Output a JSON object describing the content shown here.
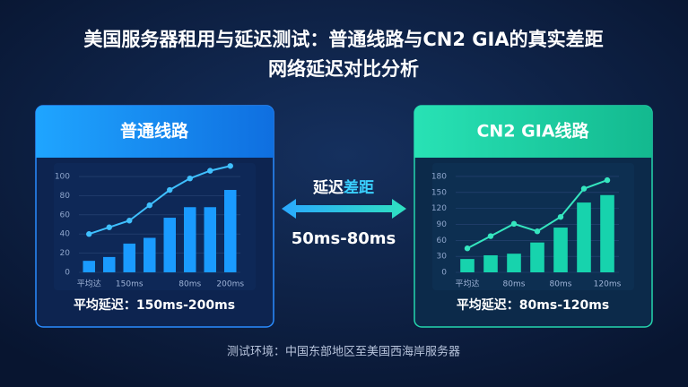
{
  "header": {
    "title_line1": "美国服务器租用与延迟测试：普通线路与CN2 GIA的真实差距",
    "title_line2": "网络延迟对比分析"
  },
  "comparison": {
    "label_parts": [
      "延迟",
      "差距"
    ],
    "value": "50ms-80ms"
  },
  "footer": "测试环境：中国东部地区至美国西海岸服务器",
  "chart_data": [
    {
      "type": "bar",
      "title": "普通线路",
      "annotation": "平均延迟：150ms-200ms",
      "categories": [
        "平均达",
        null,
        "150ms",
        null,
        null,
        "80ms",
        null,
        "200ms"
      ],
      "series": [
        {
          "type": "bar",
          "color": "#1a9bff",
          "values": [
            12,
            16,
            30,
            36,
            57,
            68,
            68,
            86
          ]
        },
        {
          "type": "line",
          "color": "#3fc0ff",
          "values": [
            40,
            47,
            54,
            70,
            86,
            98,
            106,
            111
          ]
        }
      ],
      "ylim": [
        0,
        115
      ],
      "yticks": [
        0,
        20,
        40,
        60,
        80,
        100
      ],
      "grid": true
    },
    {
      "type": "bar",
      "title": "CN2 GIA线路",
      "annotation": "平均延迟：80ms-120ms",
      "categories": [
        "平均达",
        null,
        "80ms",
        null,
        "80ms",
        null,
        "120ms"
      ],
      "series": [
        {
          "type": "bar",
          "color": "#17d3ad",
          "values": [
            25,
            32,
            35,
            56,
            84,
            131,
            145
          ]
        },
        {
          "type": "line",
          "color": "#35e6bf",
          "values": [
            45,
            68,
            91,
            77,
            104,
            157,
            173
          ]
        }
      ],
      "ylim": [
        0,
        190
      ],
      "yticks": [
        0,
        30,
        60,
        90,
        120,
        150,
        180
      ],
      "grid": true
    }
  ]
}
